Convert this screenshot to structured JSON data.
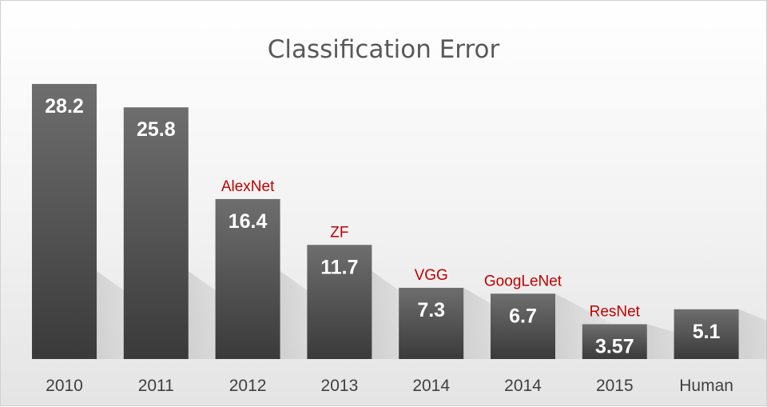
{
  "chart_data": {
    "type": "bar",
    "title": "Classification Error",
    "xlabel": "",
    "ylabel": "",
    "ylim": [
      0,
      30
    ],
    "grid": false,
    "legend": "none",
    "categories": [
      "2010",
      "2011",
      "2012",
      "2013",
      "2014",
      "2014",
      "2015",
      "Human"
    ],
    "values": [
      28.2,
      25.8,
      16.4,
      11.7,
      7.3,
      6.7,
      3.57,
      5.1
    ],
    "value_labels": [
      "28.2",
      "25.8",
      "16.4",
      "11.7",
      "7.3",
      "6.7",
      "3.57",
      "5.1"
    ],
    "annotations": [
      "",
      "",
      "AlexNet",
      "ZF",
      "VGG",
      "GoogLeNet",
      "ResNet",
      ""
    ],
    "colors": {
      "bar_top": "#6e6e6e",
      "bar_bottom": "#3a3a3a",
      "value_label": "#ffffff",
      "annotation": "#c00000",
      "title": "#595959",
      "tick": "#404040"
    }
  }
}
